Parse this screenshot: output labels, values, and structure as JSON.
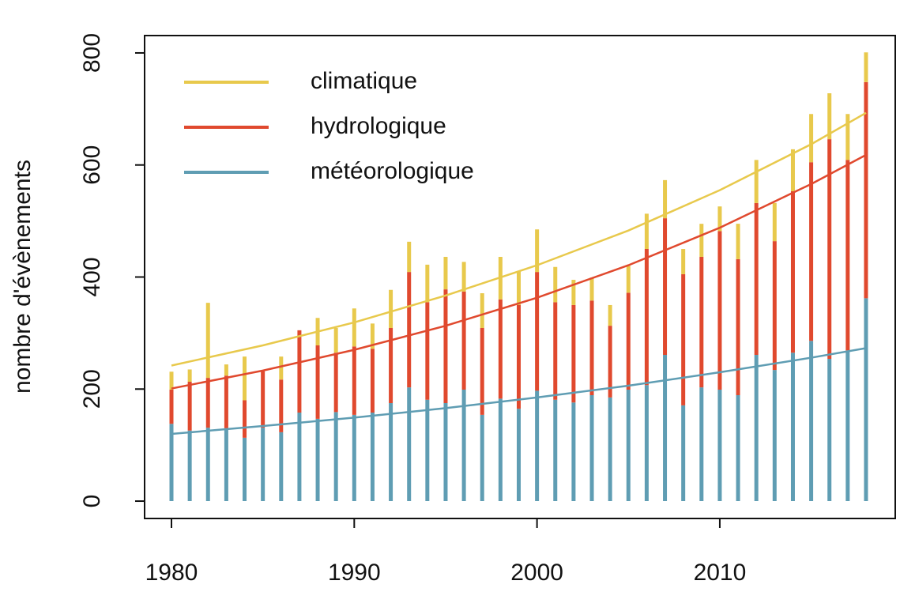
{
  "chart_data": {
    "type": "stacked-bar-lines",
    "y_label": "nombre d'évènements",
    "x": [
      1980,
      1981,
      1982,
      1983,
      1984,
      1985,
      1986,
      1987,
      1988,
      1989,
      1990,
      1991,
      1992,
      1993,
      1994,
      1995,
      1996,
      1997,
      1998,
      1999,
      2000,
      2001,
      2002,
      2003,
      2004,
      2005,
      2006,
      2007,
      2008,
      2009,
      2010,
      2011,
      2012,
      2013,
      2014,
      2015,
      2016,
      2017,
      2018
    ],
    "series": [
      {
        "name": "météorologique",
        "color": "#5f9db3",
        "values": [
          138,
          126,
          131,
          130,
          113,
          131,
          123,
          158,
          147,
          159,
          154,
          158,
          175,
          203,
          181,
          175,
          199,
          154,
          183,
          165,
          197,
          181,
          176,
          189,
          185,
          199,
          207,
          261,
          171,
          203,
          199,
          189,
          261,
          234,
          265,
          286,
          254,
          269,
          362
        ],
        "trend": [
          120,
          134,
          149,
          166,
          185,
          206,
          230,
          256,
          273
        ]
      },
      {
        "name": "hydrologique",
        "color": "#e0492e",
        "values": [
          61,
          87,
          89,
          94,
          67,
          101,
          94,
          147,
          131,
          106,
          122,
          114,
          134,
          206,
          174,
          203,
          175,
          155,
          177,
          185,
          212,
          174,
          174,
          169,
          128,
          173,
          243,
          244,
          234,
          233,
          283,
          243,
          271,
          230,
          288,
          319,
          392,
          340,
          386
        ],
        "trend": [
          201,
          233,
          270,
          313,
          363,
          421,
          488,
          566,
          618
        ]
      },
      {
        "name": "climatique",
        "color": "#e8c94c",
        "values": [
          32,
          22,
          134,
          20,
          78,
          0,
          41,
          0,
          49,
          44,
          68,
          45,
          68,
          54,
          67,
          58,
          53,
          62,
          76,
          60,
          76,
          63,
          45,
          41,
          37,
          48,
          63,
          68,
          45,
          59,
          44,
          63,
          77,
          68,
          75,
          86,
          82,
          82,
          53
        ],
        "trend": [
          242,
          278,
          319,
          367,
          421,
          483,
          555,
          637,
          693
        ]
      }
    ],
    "trend_x": [
      1980,
      1985,
      1990,
      1995,
      2000,
      2005,
      2010,
      2015,
      2018
    ],
    "xlim": [
      1978.53,
      2019.6
    ],
    "xticks": [
      1980,
      1990,
      2000,
      2010
    ],
    "ylim": [
      -31,
      831
    ],
    "yticks": [
      0,
      200,
      400,
      600,
      800
    ],
    "legend": "top-left"
  }
}
